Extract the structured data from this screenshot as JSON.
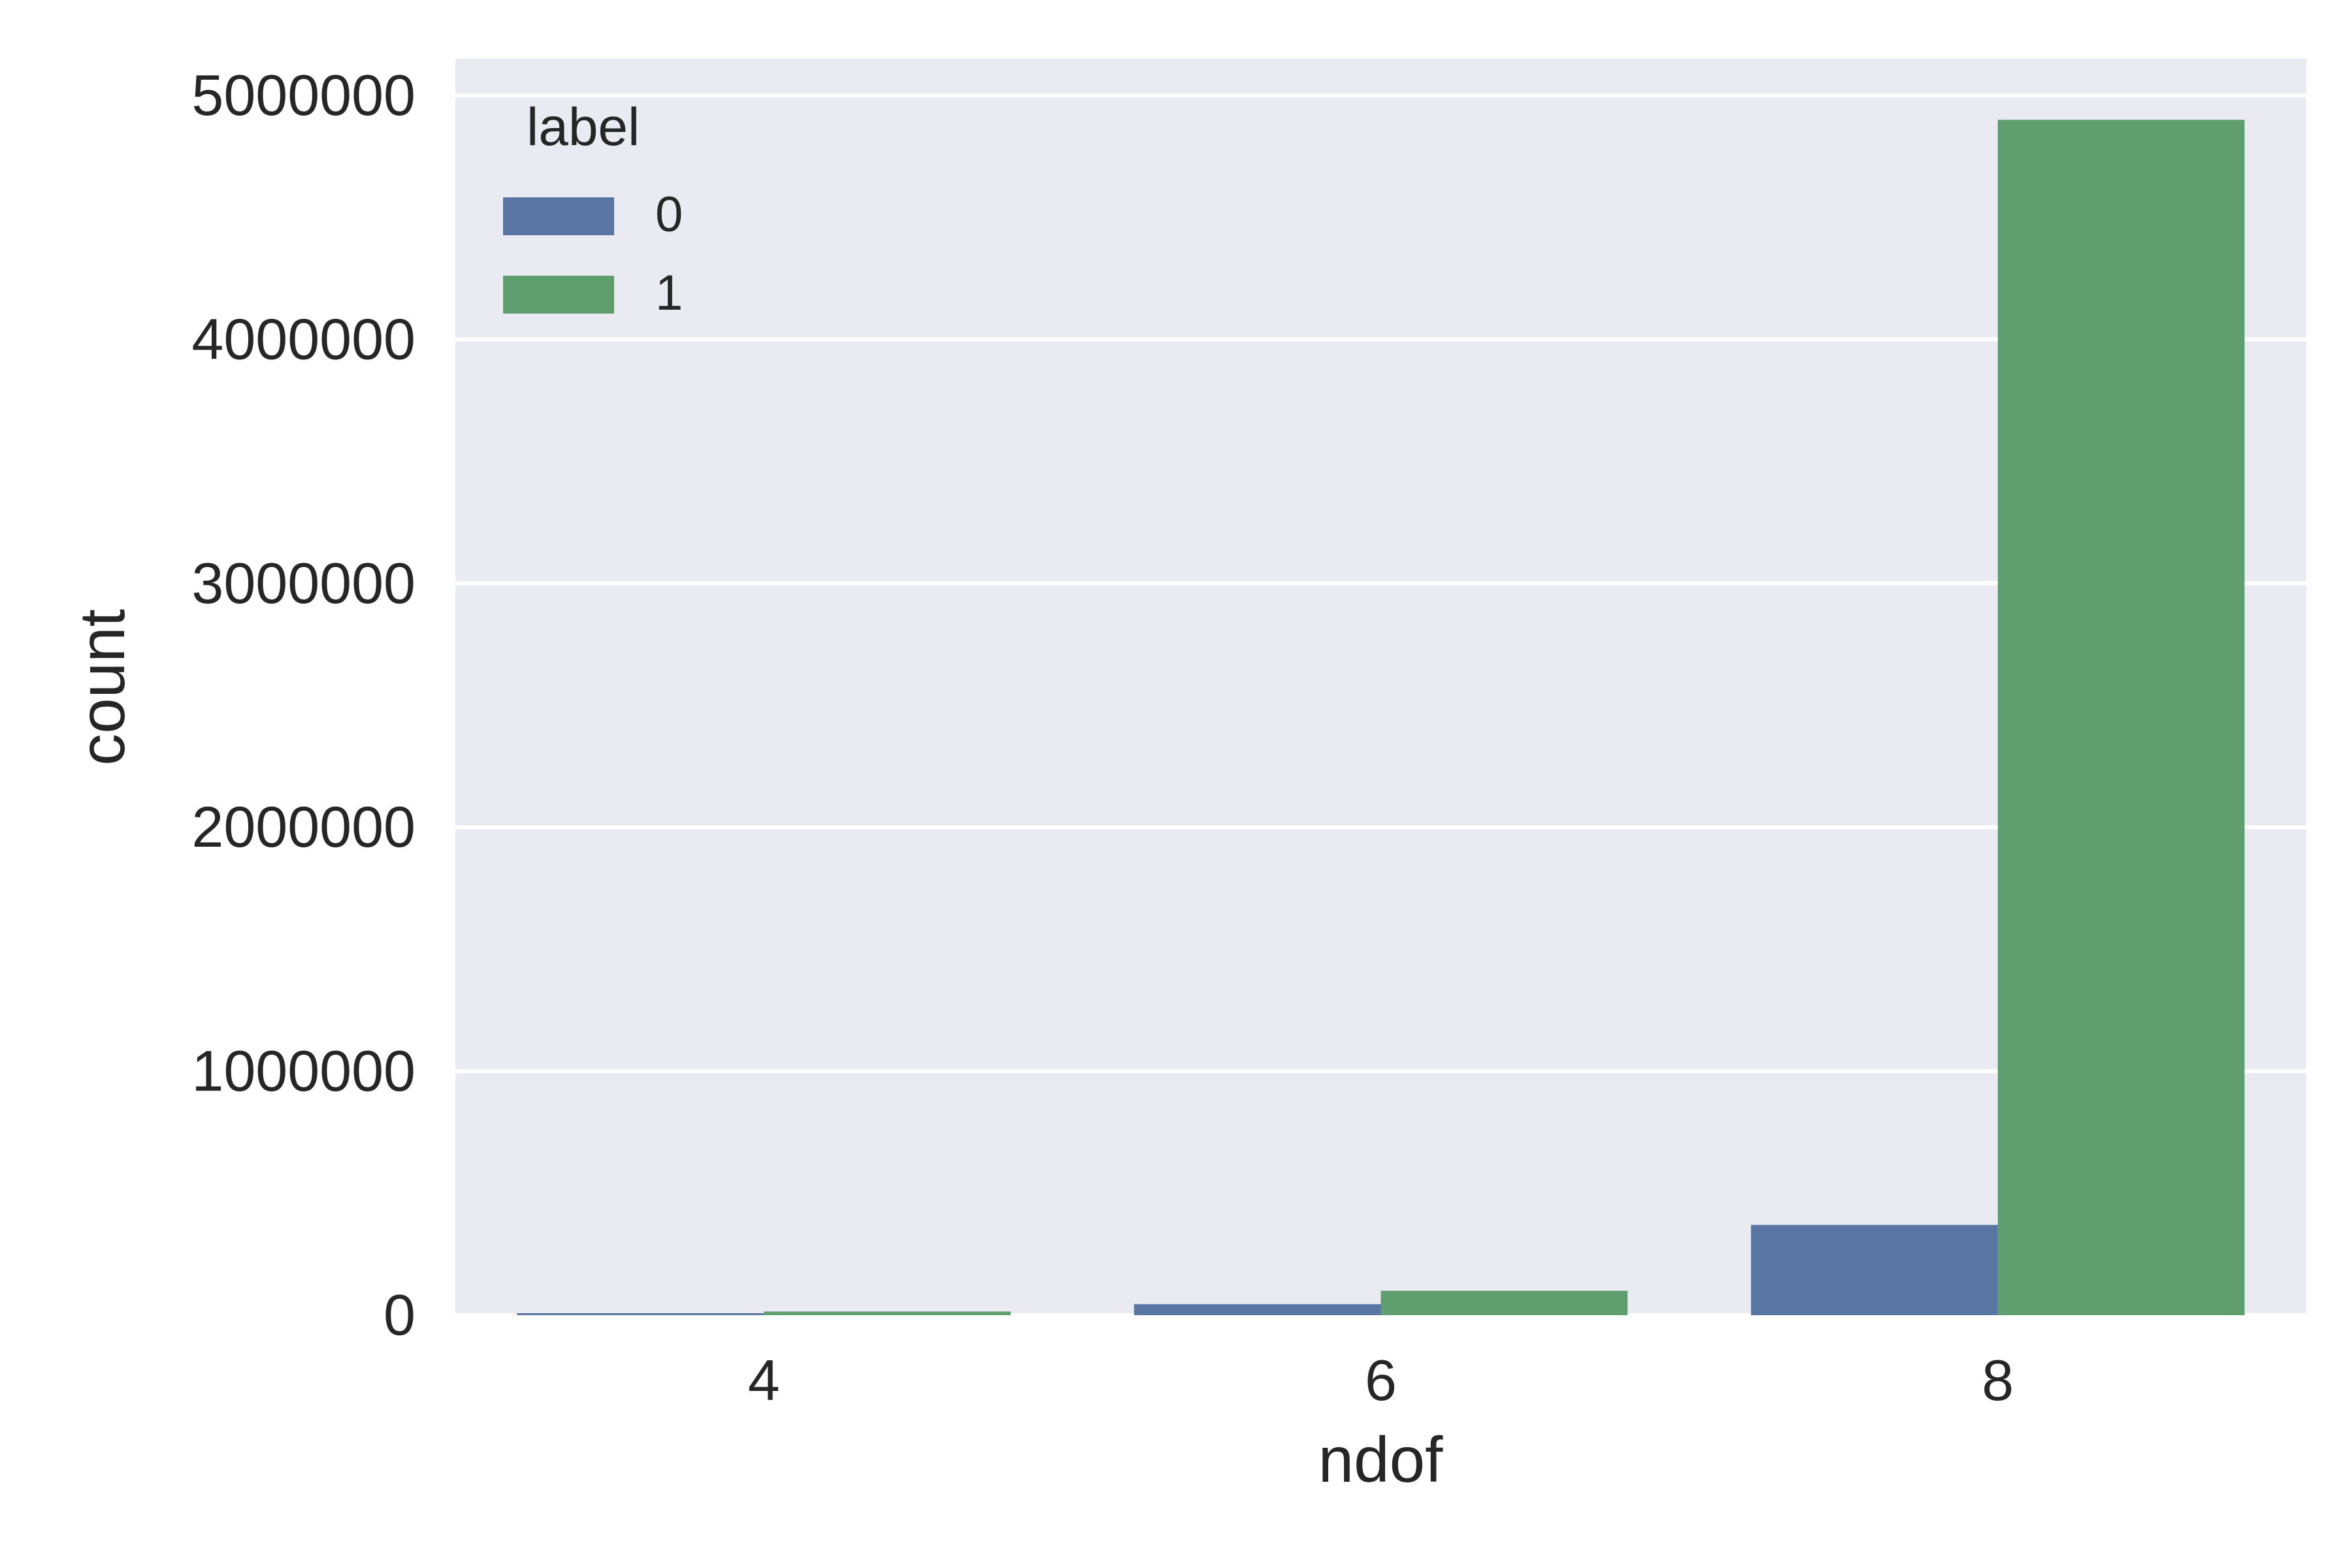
{
  "chart_data": {
    "type": "bar",
    "xlabel": "ndof",
    "ylabel": "count",
    "categories": [
      "4",
      "6",
      "8"
    ],
    "ylim": [
      0,
      5150000
    ],
    "yticks": [
      0,
      1000000,
      2000000,
      3000000,
      4000000,
      5000000
    ],
    "ytick_labels": [
      "0",
      "1000000",
      "2000000",
      "3000000",
      "4000000",
      "5000000"
    ],
    "grid": true,
    "legend": {
      "title": "label",
      "placement": "top-left"
    },
    "series": [
      {
        "name": "0",
        "color": "#5875a4",
        "values": [
          5000,
          45000,
          370000
        ]
      },
      {
        "name": "1",
        "color": "#5f9e6e",
        "values": [
          15000,
          100000,
          4900000
        ]
      }
    ],
    "colors": {
      "background": "#eaeaf2",
      "grid": "#ffffff",
      "text": "#262626"
    }
  }
}
